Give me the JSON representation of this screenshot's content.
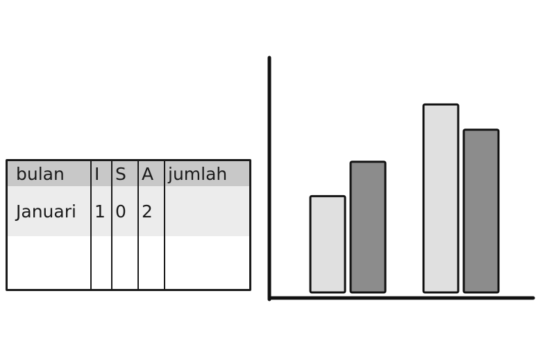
{
  "table": {
    "headers": [
      "bulan",
      "I",
      "S",
      "A",
      "jumlah"
    ],
    "rows": [
      [
        "Januari",
        "1",
        "0",
        "2",
        ""
      ]
    ]
  },
  "chart_data": {
    "type": "bar",
    "categories": [
      "",
      ""
    ],
    "series": [
      {
        "color": "#e0e0e0",
        "values": [
          4.2,
          8.2
        ]
      },
      {
        "color": "#8c8c8c",
        "values": [
          5.7,
          7.1
        ]
      }
    ],
    "ylim": [
      0,
      10
    ],
    "title": "",
    "xlabel": "",
    "ylabel": "",
    "grid": false,
    "legend": "none"
  }
}
